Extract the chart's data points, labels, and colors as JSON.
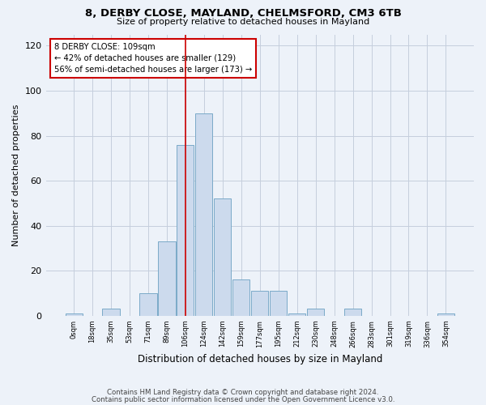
{
  "title1": "8, DERBY CLOSE, MAYLAND, CHELMSFORD, CM3 6TB",
  "title2": "Size of property relative to detached houses in Mayland",
  "xlabel": "Distribution of detached houses by size in Mayland",
  "ylabel": "Number of detached properties",
  "categories": [
    "0sqm",
    "18sqm",
    "35sqm",
    "53sqm",
    "71sqm",
    "89sqm",
    "106sqm",
    "124sqm",
    "142sqm",
    "159sqm",
    "177sqm",
    "195sqm",
    "212sqm",
    "230sqm",
    "248sqm",
    "266sqm",
    "283sqm",
    "301sqm",
    "319sqm",
    "336sqm",
    "354sqm"
  ],
  "values": [
    1,
    0,
    3,
    0,
    10,
    33,
    76,
    90,
    52,
    16,
    11,
    11,
    1,
    3,
    0,
    3,
    0,
    0,
    0,
    0,
    1
  ],
  "bar_color": "#ccdaed",
  "bar_edge_color": "#7aaac8",
  "highlight_index": 6,
  "highlight_color": "#cc0000",
  "annotation_line1": "8 DERBY CLOSE: 109sqm",
  "annotation_line2": "← 42% of detached houses are smaller (129)",
  "annotation_line3": "56% of semi-detached houses are larger (173) →",
  "annotation_box_color": "#ffffff",
  "annotation_box_edge_color": "#cc0000",
  "ylim": [
    0,
    125
  ],
  "yticks": [
    0,
    20,
    40,
    60,
    80,
    100,
    120
  ],
  "footer1": "Contains HM Land Registry data © Crown copyright and database right 2024.",
  "footer2": "Contains public sector information licensed under the Open Government Licence v3.0.",
  "bg_color": "#edf2f9"
}
